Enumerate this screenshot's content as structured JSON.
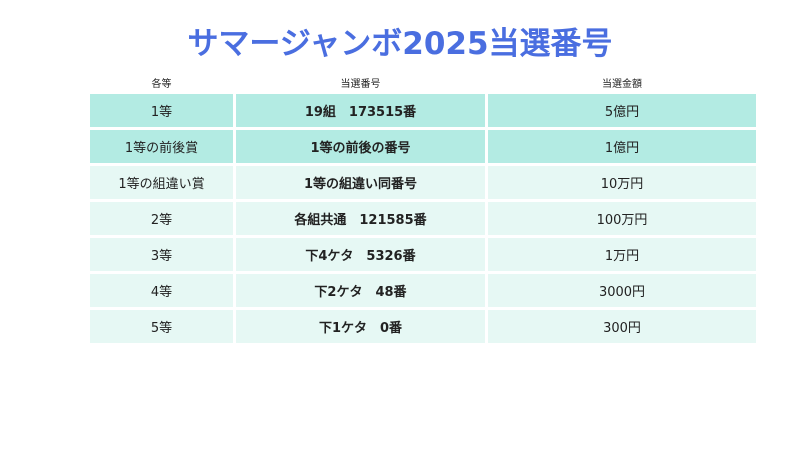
{
  "title": "サマージャンボ2025当選番号",
  "table": {
    "headers": [
      "各等",
      "当選番号",
      "当選金額"
    ],
    "rows": [
      {
        "rank": "1等",
        "number": "19組　173515番",
        "amount": "5億円",
        "shade": "dark"
      },
      {
        "rank": "1等の前後賞",
        "number": "1等の前後の番号",
        "amount": "1億円",
        "shade": "dark"
      },
      {
        "rank": "1等の組違い賞",
        "number": "1等の組違い同番号",
        "amount": "10万円",
        "shade": "light"
      },
      {
        "rank": "2等",
        "number": "各組共通　121585番",
        "amount": "100万円",
        "shade": "light"
      },
      {
        "rank": "3等",
        "number": "下4ケタ　5326番",
        "amount": "1万円",
        "shade": "light"
      },
      {
        "rank": "4等",
        "number": "下2ケタ　48番",
        "amount": "3000円",
        "shade": "light"
      },
      {
        "rank": "5等",
        "number": "下1ケタ　0番",
        "amount": "300円",
        "shade": "light"
      }
    ]
  },
  "colors": {
    "title": "#4a6ee0",
    "row_dark": "#b3ebe3",
    "row_light": "#e6f8f4"
  }
}
